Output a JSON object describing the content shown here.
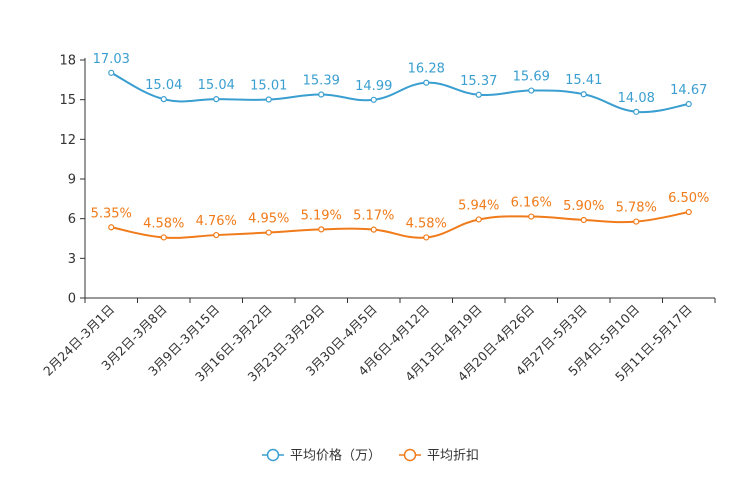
{
  "chart_data": {
    "type": "line",
    "categories": [
      "2月24日-3月1日",
      "3月2日-3月8日",
      "3月9日-3月15日",
      "3月16日-3月22日",
      "3月23日-3月29日",
      "3月30日-4月5日",
      "4月6日-4月12日",
      "4月13日-4月19日",
      "4月20日-4月26日",
      "4月27日-5月3日",
      "5月4日-5月10日",
      "5月11日-5月17日"
    ],
    "series": [
      {
        "name": "平均价格（万）",
        "color": "#3a9fd0",
        "values": [
          17.03,
          15.04,
          15.04,
          15.01,
          15.39,
          14.99,
          16.28,
          15.37,
          15.69,
          15.41,
          14.08,
          14.67
        ],
        "labels": [
          "17.03",
          "15.04",
          "15.04",
          "15.01",
          "15.39",
          "14.99",
          "16.28",
          "15.37",
          "15.69",
          "15.41",
          "14.08",
          "14.67"
        ]
      },
      {
        "name": "平均折扣",
        "color": "#f07b1a",
        "values": [
          5.35,
          4.58,
          4.76,
          4.95,
          5.19,
          5.17,
          4.58,
          5.94,
          6.16,
          5.9,
          5.78,
          6.5
        ],
        "labels": [
          "5.35%",
          "4.58%",
          "4.76%",
          "4.95%",
          "5.19%",
          "5.17%",
          "4.58%",
          "5.94%",
          "6.16%",
          "5.90%",
          "5.78%",
          "6.50%"
        ]
      }
    ],
    "yticks": [
      0,
      3,
      6,
      9,
      12,
      15,
      18
    ],
    "ylim": [
      0,
      18
    ],
    "title": "",
    "xlabel": "",
    "ylabel": "",
    "legend_position": "bottom-center",
    "grid": false
  }
}
